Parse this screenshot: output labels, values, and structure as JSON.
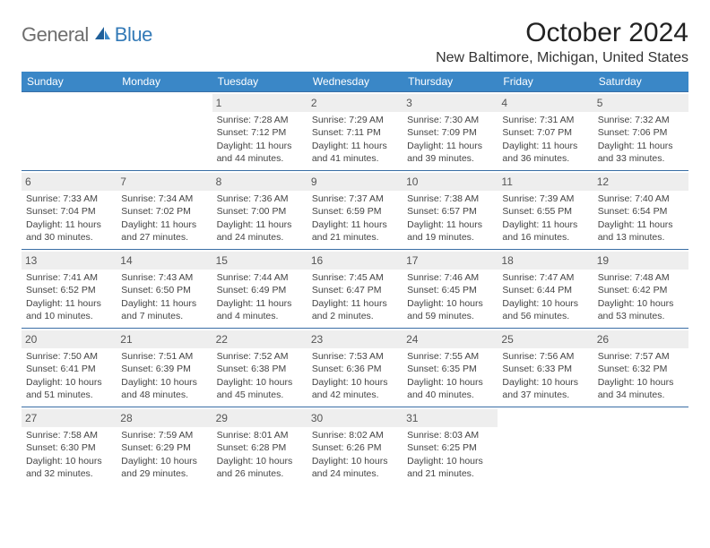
{
  "logo": {
    "general": "General",
    "blue": "Blue"
  },
  "title": "October 2024",
  "location": "New Baltimore, Michigan, United States",
  "colors": {
    "header_bg": "#3a87c7",
    "border": "#3a6ea5",
    "daynum_bg": "#eeeeee",
    "logo_blue": "#337ab7",
    "logo_grey": "#6e6e6e"
  },
  "day_headers": [
    "Sunday",
    "Monday",
    "Tuesday",
    "Wednesday",
    "Thursday",
    "Friday",
    "Saturday"
  ],
  "weeks": [
    [
      {
        "n": "",
        "sr": "",
        "ss": "",
        "dl": ""
      },
      {
        "n": "",
        "sr": "",
        "ss": "",
        "dl": ""
      },
      {
        "n": "1",
        "sr": "Sunrise: 7:28 AM",
        "ss": "Sunset: 7:12 PM",
        "dl": "Daylight: 11 hours and 44 minutes."
      },
      {
        "n": "2",
        "sr": "Sunrise: 7:29 AM",
        "ss": "Sunset: 7:11 PM",
        "dl": "Daylight: 11 hours and 41 minutes."
      },
      {
        "n": "3",
        "sr": "Sunrise: 7:30 AM",
        "ss": "Sunset: 7:09 PM",
        "dl": "Daylight: 11 hours and 39 minutes."
      },
      {
        "n": "4",
        "sr": "Sunrise: 7:31 AM",
        "ss": "Sunset: 7:07 PM",
        "dl": "Daylight: 11 hours and 36 minutes."
      },
      {
        "n": "5",
        "sr": "Sunrise: 7:32 AM",
        "ss": "Sunset: 7:06 PM",
        "dl": "Daylight: 11 hours and 33 minutes."
      }
    ],
    [
      {
        "n": "6",
        "sr": "Sunrise: 7:33 AM",
        "ss": "Sunset: 7:04 PM",
        "dl": "Daylight: 11 hours and 30 minutes."
      },
      {
        "n": "7",
        "sr": "Sunrise: 7:34 AM",
        "ss": "Sunset: 7:02 PM",
        "dl": "Daylight: 11 hours and 27 minutes."
      },
      {
        "n": "8",
        "sr": "Sunrise: 7:36 AM",
        "ss": "Sunset: 7:00 PM",
        "dl": "Daylight: 11 hours and 24 minutes."
      },
      {
        "n": "9",
        "sr": "Sunrise: 7:37 AM",
        "ss": "Sunset: 6:59 PM",
        "dl": "Daylight: 11 hours and 21 minutes."
      },
      {
        "n": "10",
        "sr": "Sunrise: 7:38 AM",
        "ss": "Sunset: 6:57 PM",
        "dl": "Daylight: 11 hours and 19 minutes."
      },
      {
        "n": "11",
        "sr": "Sunrise: 7:39 AM",
        "ss": "Sunset: 6:55 PM",
        "dl": "Daylight: 11 hours and 16 minutes."
      },
      {
        "n": "12",
        "sr": "Sunrise: 7:40 AM",
        "ss": "Sunset: 6:54 PM",
        "dl": "Daylight: 11 hours and 13 minutes."
      }
    ],
    [
      {
        "n": "13",
        "sr": "Sunrise: 7:41 AM",
        "ss": "Sunset: 6:52 PM",
        "dl": "Daylight: 11 hours and 10 minutes."
      },
      {
        "n": "14",
        "sr": "Sunrise: 7:43 AM",
        "ss": "Sunset: 6:50 PM",
        "dl": "Daylight: 11 hours and 7 minutes."
      },
      {
        "n": "15",
        "sr": "Sunrise: 7:44 AM",
        "ss": "Sunset: 6:49 PM",
        "dl": "Daylight: 11 hours and 4 minutes."
      },
      {
        "n": "16",
        "sr": "Sunrise: 7:45 AM",
        "ss": "Sunset: 6:47 PM",
        "dl": "Daylight: 11 hours and 2 minutes."
      },
      {
        "n": "17",
        "sr": "Sunrise: 7:46 AM",
        "ss": "Sunset: 6:45 PM",
        "dl": "Daylight: 10 hours and 59 minutes."
      },
      {
        "n": "18",
        "sr": "Sunrise: 7:47 AM",
        "ss": "Sunset: 6:44 PM",
        "dl": "Daylight: 10 hours and 56 minutes."
      },
      {
        "n": "19",
        "sr": "Sunrise: 7:48 AM",
        "ss": "Sunset: 6:42 PM",
        "dl": "Daylight: 10 hours and 53 minutes."
      }
    ],
    [
      {
        "n": "20",
        "sr": "Sunrise: 7:50 AM",
        "ss": "Sunset: 6:41 PM",
        "dl": "Daylight: 10 hours and 51 minutes."
      },
      {
        "n": "21",
        "sr": "Sunrise: 7:51 AM",
        "ss": "Sunset: 6:39 PM",
        "dl": "Daylight: 10 hours and 48 minutes."
      },
      {
        "n": "22",
        "sr": "Sunrise: 7:52 AM",
        "ss": "Sunset: 6:38 PM",
        "dl": "Daylight: 10 hours and 45 minutes."
      },
      {
        "n": "23",
        "sr": "Sunrise: 7:53 AM",
        "ss": "Sunset: 6:36 PM",
        "dl": "Daylight: 10 hours and 42 minutes."
      },
      {
        "n": "24",
        "sr": "Sunrise: 7:55 AM",
        "ss": "Sunset: 6:35 PM",
        "dl": "Daylight: 10 hours and 40 minutes."
      },
      {
        "n": "25",
        "sr": "Sunrise: 7:56 AM",
        "ss": "Sunset: 6:33 PM",
        "dl": "Daylight: 10 hours and 37 minutes."
      },
      {
        "n": "26",
        "sr": "Sunrise: 7:57 AM",
        "ss": "Sunset: 6:32 PM",
        "dl": "Daylight: 10 hours and 34 minutes."
      }
    ],
    [
      {
        "n": "27",
        "sr": "Sunrise: 7:58 AM",
        "ss": "Sunset: 6:30 PM",
        "dl": "Daylight: 10 hours and 32 minutes."
      },
      {
        "n": "28",
        "sr": "Sunrise: 7:59 AM",
        "ss": "Sunset: 6:29 PM",
        "dl": "Daylight: 10 hours and 29 minutes."
      },
      {
        "n": "29",
        "sr": "Sunrise: 8:01 AM",
        "ss": "Sunset: 6:28 PM",
        "dl": "Daylight: 10 hours and 26 minutes."
      },
      {
        "n": "30",
        "sr": "Sunrise: 8:02 AM",
        "ss": "Sunset: 6:26 PM",
        "dl": "Daylight: 10 hours and 24 minutes."
      },
      {
        "n": "31",
        "sr": "Sunrise: 8:03 AM",
        "ss": "Sunset: 6:25 PM",
        "dl": "Daylight: 10 hours and 21 minutes."
      },
      {
        "n": "",
        "sr": "",
        "ss": "",
        "dl": ""
      },
      {
        "n": "",
        "sr": "",
        "ss": "",
        "dl": ""
      }
    ]
  ]
}
